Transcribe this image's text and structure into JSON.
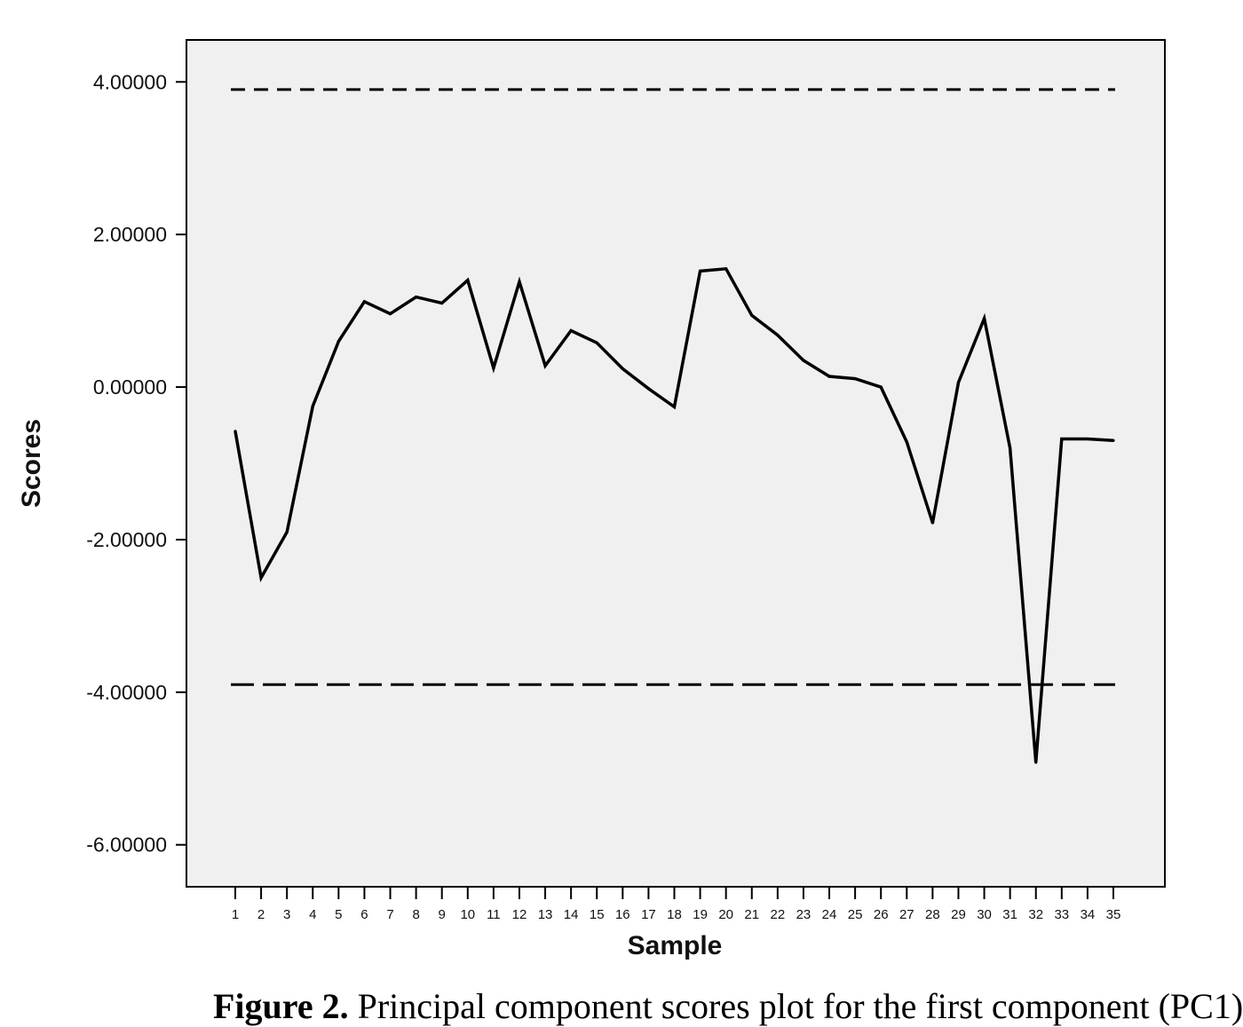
{
  "chart_data": {
    "type": "line",
    "xlabel": "Sample",
    "ylabel": "Scores",
    "categories": [
      "1",
      "2",
      "3",
      "4",
      "5",
      "6",
      "7",
      "8",
      "9",
      "10",
      "11",
      "12",
      "13",
      "14",
      "15",
      "16",
      "17",
      "18",
      "19",
      "20",
      "21",
      "22",
      "23",
      "24",
      "25",
      "26",
      "27",
      "28",
      "29",
      "30",
      "31",
      "32",
      "33",
      "34",
      "35"
    ],
    "yticks": [
      "4.00000",
      "2.00000",
      "0.00000",
      "-2.00000",
      "-4.00000",
      "-6.00000"
    ],
    "ylim": [
      -6.55,
      4.55
    ],
    "grid": false,
    "series": [
      {
        "values": [
          -0.58,
          -2.5,
          -1.9,
          -0.25,
          0.6,
          1.12,
          0.96,
          1.18,
          1.1,
          1.4,
          0.25,
          1.38,
          0.28,
          0.74,
          0.58,
          0.24,
          -0.02,
          -0.26,
          1.52,
          1.55,
          0.94,
          0.68,
          0.35,
          0.14,
          0.11,
          0.0,
          -0.72,
          -1.78,
          0.06,
          0.9,
          -0.8,
          -4.92,
          -0.68,
          -0.68,
          -0.7
        ]
      }
    ],
    "reference_lines": [
      {
        "y": 3.9,
        "style": "short-dash"
      },
      {
        "y": -3.9,
        "style": "long-dash"
      }
    ]
  },
  "caption": {
    "label": "Figure 2",
    "text": "Principal component scores plot for the first component (PC1)"
  }
}
